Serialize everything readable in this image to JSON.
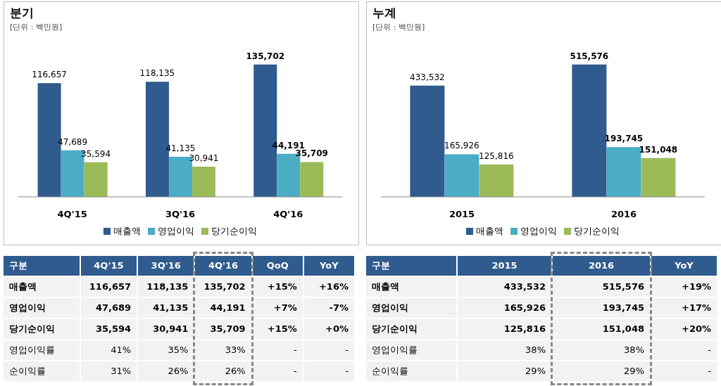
{
  "chart_data": [
    {
      "type": "bar",
      "title": "분기",
      "subtitle": "[단위 : 백만원]",
      "categories": [
        "4Q'15",
        "3Q'16",
        "4Q'16"
      ],
      "series": [
        {
          "name": "매출액",
          "color": "#2f5b8e",
          "values": [
            116657,
            118135,
            135702
          ],
          "value_labels": [
            "116,657",
            "118,135",
            "135,702"
          ]
        },
        {
          "name": "영업이익",
          "color": "#4bacc6",
          "values": [
            47689,
            41135,
            44191
          ],
          "value_labels": [
            "47,689",
            "41,135",
            "44,191"
          ]
        },
        {
          "name": "당기순이익",
          "color": "#9bbb59",
          "values": [
            35594,
            30941,
            35709
          ],
          "value_labels": [
            "35,594",
            "30,941",
            "35,709"
          ]
        }
      ],
      "legend": "bottom",
      "annotations": [
        "구분",
        "4Q'15",
        "3Q'16",
        "4Q'16",
        "QoQ",
        "YoY",
        "매출액",
        "116,657",
        "118,135",
        "135,702",
        "+15%",
        "+16%",
        "영업이익",
        "47,689",
        "41,135",
        "44,191",
        "+7%",
        "-7%",
        "당기순이익",
        "35,594",
        "30,941",
        "35,709",
        "+15%",
        "+0%",
        "영업이익률",
        "41%",
        "35%",
        "33%",
        "-",
        "-",
        "순이익률",
        "31%",
        "26%",
        "26%",
        "-",
        "-"
      ]
    },
    {
      "type": "bar",
      "title": "누계",
      "subtitle": "[단위 : 백만원]",
      "categories": [
        "2015",
        "2016"
      ],
      "series": [
        {
          "name": "매출액",
          "color": "#2f5b8e",
          "values": [
            433532,
            515576
          ],
          "value_labels": [
            "433,532",
            "515,576"
          ]
        },
        {
          "name": "영업이익",
          "color": "#4bacc6",
          "values": [
            165926,
            193745
          ],
          "value_labels": [
            "165,926",
            "193,745"
          ]
        },
        {
          "name": "당기순이익",
          "color": "#9bbb59",
          "values": [
            125816,
            151048
          ],
          "value_labels": [
            "125,816",
            "151,048"
          ]
        }
      ],
      "legend": "bottom",
      "annotations": [
        "구분",
        "2015",
        "2016",
        "YoY",
        "매출액",
        "433,532",
        "515,576",
        "+19%",
        "영업이익",
        "165,926",
        "193,745",
        "+17%",
        "당기순이익",
        "125,816",
        "151,048",
        "+20%",
        "영업이익률",
        "38%",
        "38%",
        "-",
        "순이익률",
        "29%",
        "29%",
        "-"
      ]
    }
  ]
}
